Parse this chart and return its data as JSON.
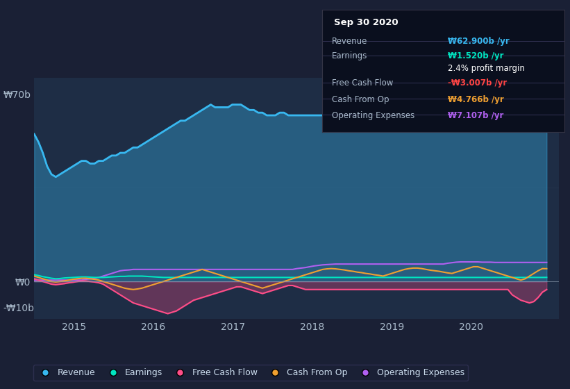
{
  "background_color": "#1a2035",
  "plot_bg_color": "#1e2d45",
  "ylabel_top": "₩70b",
  "ylabel_zero": "₩0",
  "ylabel_bottom": "-₩10b",
  "x_ticks": [
    2015,
    2016,
    2017,
    2018,
    2019,
    2020
  ],
  "series": {
    "Revenue": {
      "color": "#38b8f0",
      "fill_alpha": 0.35,
      "linewidth": 2.0
    },
    "Earnings": {
      "color": "#00e5c0",
      "linewidth": 1.5
    },
    "Free Cash Flow": {
      "color": "#ff4d88",
      "fill_alpha": 0.3,
      "linewidth": 1.5
    },
    "Cash From Op": {
      "color": "#f0a030",
      "linewidth": 1.5
    },
    "Operating Expenses": {
      "color": "#b060f0",
      "linewidth": 1.5
    }
  },
  "infobox": {
    "title": "Sep 30 2020",
    "bg": "#0a0f1e",
    "rows": [
      {
        "label": "Revenue",
        "value": "₩62.900b /yr",
        "value_color": "#38b8f0"
      },
      {
        "label": "Earnings",
        "value": "₩1.520b /yr",
        "value_color": "#00e5c0"
      },
      {
        "label": "",
        "value": "2.4% profit margin",
        "value_color": "#ffffff"
      },
      {
        "label": "Free Cash Flow",
        "value": "-₩3.007b /yr",
        "value_color": "#ff4444"
      },
      {
        "label": "Cash From Op",
        "value": "₩4.766b /yr",
        "value_color": "#f0a030"
      },
      {
        "label": "Operating Expenses",
        "value": "₩7.107b /yr",
        "value_color": "#b060f0"
      }
    ]
  },
  "legend_items": [
    "Revenue",
    "Earnings",
    "Free Cash Flow",
    "Cash From Op",
    "Operating Expenses"
  ],
  "legend_colors": [
    "#38b8f0",
    "#00e5c0",
    "#ff4d88",
    "#f0a030",
    "#b060f0"
  ]
}
